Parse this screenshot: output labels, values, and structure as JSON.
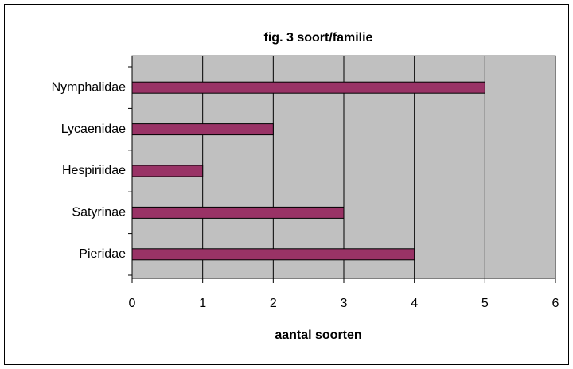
{
  "chart_data": {
    "type": "hbar",
    "title": "fig. 3  soort/familie",
    "categories": [
      "Nymphalidae",
      "Lycaenidae",
      "Hespiriidae",
      "Satyrinae",
      "Pieridae"
    ],
    "values": [
      5,
      2,
      1,
      3,
      4
    ],
    "color": "#993366",
    "xlabel": "aantal soorten",
    "xlim": [
      0,
      6
    ],
    "xticks": [
      0,
      1,
      2,
      3,
      4,
      5,
      6
    ],
    "grid": true
  }
}
